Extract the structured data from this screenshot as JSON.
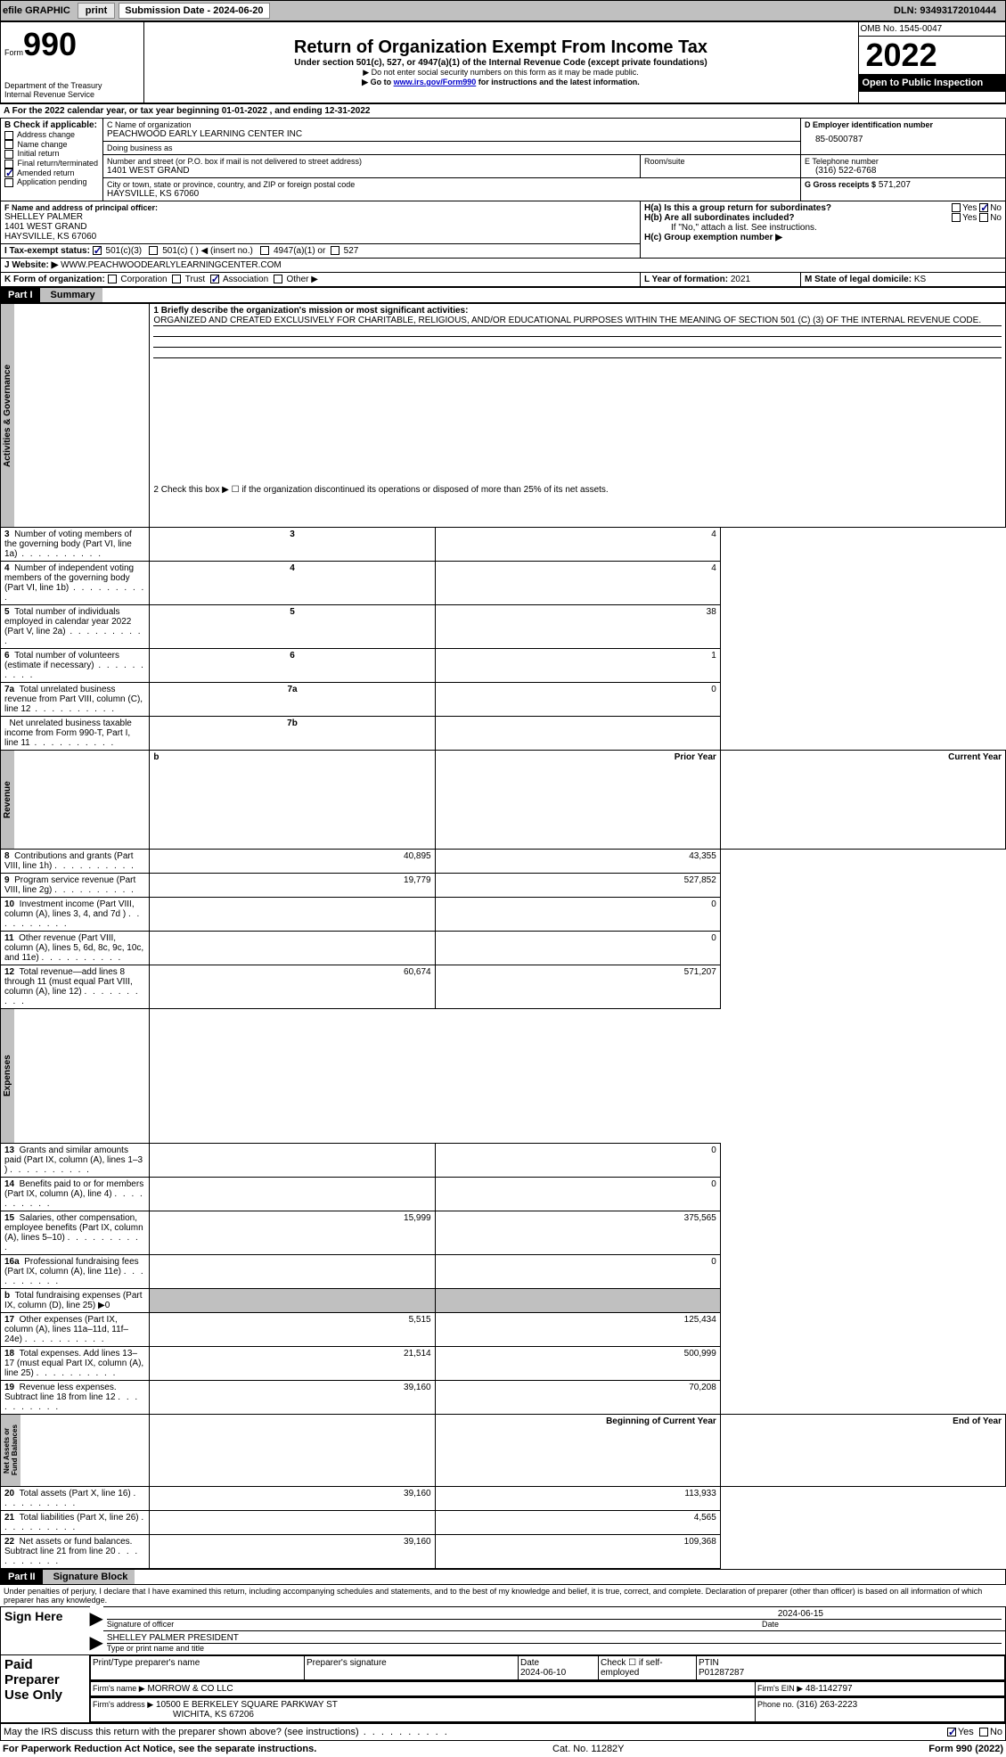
{
  "topbar": {
    "efile_label": "efile GRAPHIC",
    "print_btn": "print",
    "submission_label": "Submission Date - 2024-06-20",
    "dln_label": "DLN: 93493172010444"
  },
  "header": {
    "form_label": "Form",
    "form_number": "990",
    "dept": "Department of the Treasury",
    "irs": "Internal Revenue Service",
    "title": "Return of Organization Exempt From Income Tax",
    "subtitle": "Under section 501(c), 527, or 4947(a)(1) of the Internal Revenue Code (except private foundations)",
    "note1": "▶ Do not enter social security numbers on this form as it may be made public.",
    "note2_prefix": "▶ Go to ",
    "note2_link": "www.irs.gov/Form990",
    "note2_suffix": " for instructions and the latest information.",
    "omb": "OMB No. 1545-0047",
    "year": "2022",
    "inspect": "Open to Public Inspection"
  },
  "row_a": {
    "text_prefix": "A For the 2022 calendar year, or tax year beginning ",
    "begin": "01-01-2022",
    "mid": "  , and ending ",
    "end": "12-31-2022"
  },
  "row_b": {
    "label": "B Check if applicable:",
    "opts": [
      "Address change",
      "Name change",
      "Initial return",
      "Final return/terminated",
      "Amended return",
      "Application pending"
    ],
    "checked_idx": 4
  },
  "row_c": {
    "name_label": "C Name of organization",
    "name": "PEACHWOOD EARLY LEARNING CENTER INC",
    "dba_label": "Doing business as",
    "dba": "",
    "addr_label": "Number and street (or P.O. box if mail is not delivered to street address)",
    "addr": "1401 WEST GRAND",
    "room_label": "Room/suite",
    "city_label": "City or town, state or province, country, and ZIP or foreign postal code",
    "city": "HAYSVILLE, KS  67060"
  },
  "row_d": {
    "label": "D Employer identification number",
    "value": "85-0500787"
  },
  "row_e": {
    "label": "E Telephone number",
    "value": "(316) 522-6768"
  },
  "row_g": {
    "label": "G Gross receipts $",
    "value": "571,207"
  },
  "row_f": {
    "label": "F  Name and address of principal officer:",
    "name": "SHELLEY PALMER",
    "addr1": "1401 WEST GRAND",
    "addr2": "HAYSVILLE, KS  67060"
  },
  "row_h": {
    "ha_label": "H(a)  Is this a group return for subordinates?",
    "ha_yes": "Yes",
    "ha_no": "No",
    "hb_label": "H(b)  Are all subordinates included?",
    "hb_note": "If \"No,\" attach a list. See instructions.",
    "hc_label": "H(c)  Group exemption number ▶"
  },
  "row_i": {
    "label": "I   Tax-exempt status:",
    "o1": "501(c)(3)",
    "o2": "501(c) (  ) ◀ (insert no.)",
    "o3": "4947(a)(1) or",
    "o4": "527"
  },
  "row_j": {
    "label": "J   Website: ▶",
    "value": "WWW.PEACHWOODEARLYLEARNINGCENTER.COM"
  },
  "row_k": {
    "label": "K Form of organization:",
    "o1": "Corporation",
    "o2": "Trust",
    "o3": "Association",
    "o4": "Other ▶"
  },
  "row_l": {
    "label": "L Year of formation:",
    "value": "2021"
  },
  "row_m": {
    "label": "M State of legal domicile:",
    "value": "KS"
  },
  "part1": {
    "hdr": "Part I",
    "title": "Summary",
    "vert_labels": [
      "Activities & Governance",
      "Revenue",
      "Expenses",
      "Net Assets or Fund Balances"
    ],
    "q1_label": "1   Briefly describe the organization's mission or most significant activities:",
    "q1_text": "ORGANIZED AND CREATED EXCLUSIVELY FOR CHARITABLE, RELIGIOUS, AND/OR EDUCATIONAL PURPOSES WITHIN THE MEANING OF SECTION 501 (C) (3) OF THE INTERNAL REVENUE CODE.",
    "q2": "2   Check this box ▶ ☐  if the organization discontinued its operations or disposed of more than 25% of its net assets.",
    "rows_ag": [
      {
        "n": "3",
        "t": "Number of voting members of the governing body (Part VI, line 1a)",
        "box": "3",
        "v": "4"
      },
      {
        "n": "4",
        "t": "Number of independent voting members of the governing body (Part VI, line 1b)",
        "box": "4",
        "v": "4"
      },
      {
        "n": "5",
        "t": "Total number of individuals employed in calendar year 2022 (Part V, line 2a)",
        "box": "5",
        "v": "38"
      },
      {
        "n": "6",
        "t": "Total number of volunteers (estimate if necessary)",
        "box": "6",
        "v": "1"
      },
      {
        "n": "7a",
        "t": "Total unrelated business revenue from Part VIII, column (C), line 12",
        "box": "7a",
        "v": "0"
      },
      {
        "n": "",
        "t": "Net unrelated business taxable income from Form 990-T, Part I, line 11",
        "box": "7b",
        "v": ""
      }
    ],
    "prior_hdr": "Prior Year",
    "current_hdr": "Current Year",
    "rows_rev": [
      {
        "n": "8",
        "t": "Contributions and grants (Part VIII, line 1h)",
        "p": "40,895",
        "c": "43,355"
      },
      {
        "n": "9",
        "t": "Program service revenue (Part VIII, line 2g)",
        "p": "19,779",
        "c": "527,852"
      },
      {
        "n": "10",
        "t": "Investment income (Part VIII, column (A), lines 3, 4, and 7d )",
        "p": "",
        "c": "0"
      },
      {
        "n": "11",
        "t": "Other revenue (Part VIII, column (A), lines 5, 6d, 8c, 9c, 10c, and 11e)",
        "p": "",
        "c": "0"
      },
      {
        "n": "12",
        "t": "Total revenue—add lines 8 through 11 (must equal Part VIII, column (A), line 12)",
        "p": "60,674",
        "c": "571,207"
      }
    ],
    "rows_exp": [
      {
        "n": "13",
        "t": "Grants and similar amounts paid (Part IX, column (A), lines 1–3 )",
        "p": "",
        "c": "0"
      },
      {
        "n": "14",
        "t": "Benefits paid to or for members (Part IX, column (A), line 4)",
        "p": "",
        "c": "0"
      },
      {
        "n": "15",
        "t": "Salaries, other compensation, employee benefits (Part IX, column (A), lines 5–10)",
        "p": "15,999",
        "c": "375,565"
      },
      {
        "n": "16a",
        "t": "Professional fundraising fees (Part IX, column (A), line 11e)",
        "p": "",
        "c": "0"
      },
      {
        "n": "b",
        "t": "Total fundraising expenses (Part IX, column (D), line 25) ▶0",
        "p": "SHADE",
        "c": "SHADE"
      },
      {
        "n": "17",
        "t": "Other expenses (Part IX, column (A), lines 11a–11d, 11f–24e)",
        "p": "5,515",
        "c": "125,434"
      },
      {
        "n": "18",
        "t": "Total expenses. Add lines 13–17 (must equal Part IX, column (A), line 25)",
        "p": "21,514",
        "c": "500,999"
      },
      {
        "n": "19",
        "t": "Revenue less expenses. Subtract line 18 from line 12",
        "p": "39,160",
        "c": "70,208"
      }
    ],
    "begin_hdr": "Beginning of Current Year",
    "end_hdr": "End of Year",
    "rows_na": [
      {
        "n": "20",
        "t": "Total assets (Part X, line 16)",
        "p": "39,160",
        "c": "113,933"
      },
      {
        "n": "21",
        "t": "Total liabilities (Part X, line 26)",
        "p": "",
        "c": "4,565"
      },
      {
        "n": "22",
        "t": "Net assets or fund balances. Subtract line 21 from line 20",
        "p": "39,160",
        "c": "109,368"
      }
    ]
  },
  "part2": {
    "hdr": "Part II",
    "title": "Signature Block",
    "penalty": "Under penalties of perjury, I declare that I have examined this return, including accompanying schedules and statements, and to the best of my knowledge and belief, it is true, correct, and complete. Declaration of preparer (other than officer) is based on all information of which preparer has any knowledge.",
    "sign_here": "Sign Here",
    "sig_officer": "Signature of officer",
    "sig_date": "2024-06-15",
    "date_label": "Date",
    "officer_name": "SHELLEY PALMER  PRESIDENT",
    "type_label": "Type or print name and title",
    "paid_label": "Paid Preparer Use Only",
    "prep_name_label": "Print/Type preparer's name",
    "prep_sig_label": "Preparer's signature",
    "prep_date_label": "Date",
    "prep_date": "2024-06-10",
    "self_emp": "Check ☐ if self-employed",
    "ptin_label": "PTIN",
    "ptin": "P01287287",
    "firm_name_label": "Firm's name    ▶",
    "firm_name": "MORROW & CO LLC",
    "firm_ein_label": "Firm's EIN ▶",
    "firm_ein": "48-1142797",
    "firm_addr_label": "Firm's address ▶",
    "firm_addr1": "10500 E BERKELEY SQUARE PARKWAY ST",
    "firm_addr2": "WICHITA, KS  67206",
    "phone_label": "Phone no.",
    "phone": "(316) 263-2223",
    "discuss": "May the IRS discuss this return with the preparer shown above? (see instructions)",
    "yes": "Yes",
    "no": "No"
  },
  "footer": {
    "pra": "For Paperwork Reduction Act Notice, see the separate instructions.",
    "cat": "Cat. No. 11282Y",
    "form": "Form 990 (2022)"
  }
}
